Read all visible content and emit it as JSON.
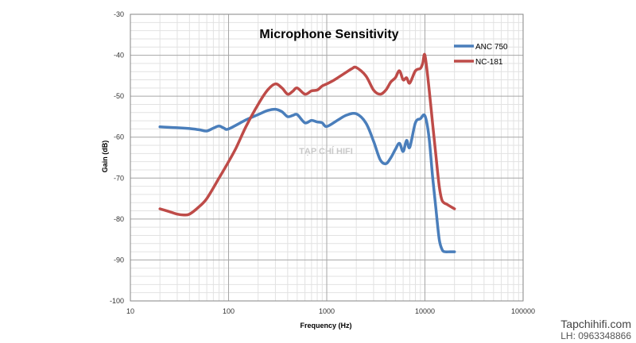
{
  "chart_data": {
    "type": "line",
    "title": "Microphone Sensitivity",
    "xlabel": "Frequency (Hz)",
    "ylabel": "Gain (dB)",
    "x_scale": "log",
    "xlim": [
      10,
      100000
    ],
    "ylim": [
      -100,
      -30
    ],
    "x_ticks": [
      "10",
      "100",
      "1000",
      "10000",
      "100000"
    ],
    "y_ticks": [
      "-30",
      "-40",
      "-50",
      "-60",
      "-70",
      "-80",
      "-90",
      "-100"
    ],
    "grid": true,
    "legend_position": "top-right",
    "watermark": "TẠP CHÍ HIFI",
    "series": [
      {
        "name": "ANC 750",
        "color": "#4a7ebb",
        "points": [
          [
            20,
            -57.5
          ],
          [
            30,
            -57.7
          ],
          [
            40,
            -57.9
          ],
          [
            50,
            -58.2
          ],
          [
            60,
            -58.5
          ],
          [
            70,
            -57.8
          ],
          [
            80,
            -57.3
          ],
          [
            90,
            -57.8
          ],
          [
            100,
            -58
          ],
          [
            150,
            -55.8
          ],
          [
            200,
            -54.5
          ],
          [
            250,
            -53.5
          ],
          [
            300,
            -53.2
          ],
          [
            350,
            -53.8
          ],
          [
            400,
            -55
          ],
          [
            450,
            -54.7
          ],
          [
            500,
            -54.5
          ],
          [
            600,
            -56.5
          ],
          [
            700,
            -55.9
          ],
          [
            800,
            -56.3
          ],
          [
            900,
            -56.5
          ],
          [
            1000,
            -57.4
          ],
          [
            1300,
            -55.8
          ],
          [
            1600,
            -54.6
          ],
          [
            2000,
            -54.3
          ],
          [
            2500,
            -56.5
          ],
          [
            3000,
            -61
          ],
          [
            3500,
            -65.5
          ],
          [
            4000,
            -66.5
          ],
          [
            4500,
            -65
          ],
          [
            5000,
            -63
          ],
          [
            5500,
            -61.5
          ],
          [
            6000,
            -63.5
          ],
          [
            6500,
            -60.8
          ],
          [
            7000,
            -62.5
          ],
          [
            8000,
            -56.5
          ],
          [
            9000,
            -55.5
          ],
          [
            10000,
            -54.8
          ],
          [
            11000,
            -60
          ],
          [
            12000,
            -70
          ],
          [
            13000,
            -78
          ],
          [
            14000,
            -85
          ],
          [
            15000,
            -87.5
          ],
          [
            16000,
            -88
          ],
          [
            18000,
            -88
          ],
          [
            20000,
            -88
          ]
        ]
      },
      {
        "name": "NC-181",
        "color": "#be4b48",
        "points": [
          [
            20,
            -77.5
          ],
          [
            25,
            -78.2
          ],
          [
            30,
            -78.8
          ],
          [
            35,
            -79
          ],
          [
            40,
            -78.8
          ],
          [
            50,
            -77
          ],
          [
            60,
            -75
          ],
          [
            80,
            -70
          ],
          [
            100,
            -66
          ],
          [
            120,
            -62.5
          ],
          [
            150,
            -57.5
          ],
          [
            200,
            -52
          ],
          [
            250,
            -48.5
          ],
          [
            300,
            -47
          ],
          [
            350,
            -48
          ],
          [
            400,
            -49.5
          ],
          [
            450,
            -48.8
          ],
          [
            500,
            -48
          ],
          [
            600,
            -49.5
          ],
          [
            700,
            -48.7
          ],
          [
            800,
            -48.5
          ],
          [
            900,
            -47.5
          ],
          [
            1000,
            -47
          ],
          [
            1200,
            -46
          ],
          [
            1500,
            -44.5
          ],
          [
            1800,
            -43.3
          ],
          [
            2000,
            -43
          ],
          [
            2500,
            -45
          ],
          [
            3000,
            -48.5
          ],
          [
            3500,
            -49.5
          ],
          [
            4000,
            -48.5
          ],
          [
            4500,
            -46.5
          ],
          [
            5000,
            -45.5
          ],
          [
            5500,
            -43.8
          ],
          [
            6000,
            -46
          ],
          [
            6500,
            -45.5
          ],
          [
            7000,
            -46.8
          ],
          [
            8000,
            -43.8
          ],
          [
            9000,
            -43.2
          ],
          [
            9500,
            -42
          ],
          [
            10000,
            -40
          ],
          [
            11000,
            -48
          ],
          [
            12000,
            -57
          ],
          [
            13000,
            -65
          ],
          [
            14000,
            -72
          ],
          [
            15000,
            -75.5
          ],
          [
            17000,
            -76.5
          ],
          [
            20000,
            -77.5
          ]
        ]
      }
    ]
  },
  "credits": {
    "site": "Tapchihifi.com",
    "phone": "LH: 0963348866"
  }
}
